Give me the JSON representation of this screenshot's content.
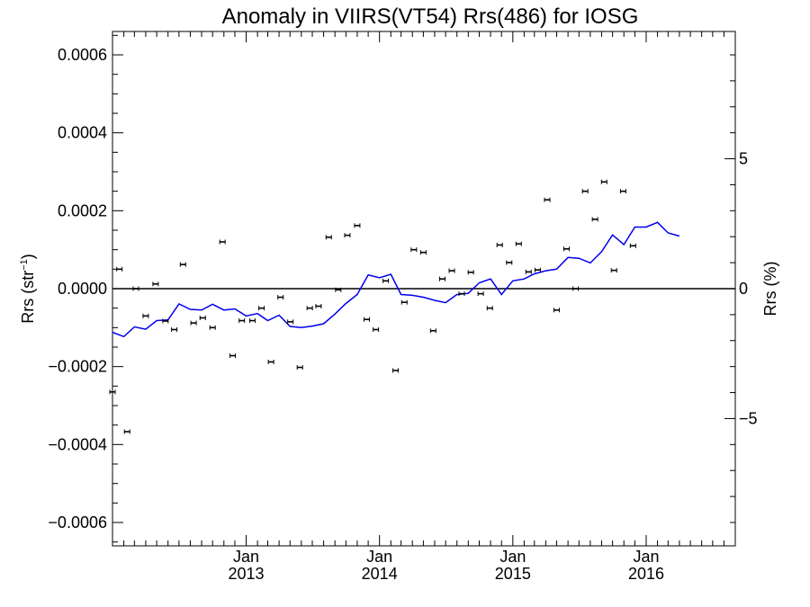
{
  "chart_data": {
    "type": "scatter",
    "title": "Anomaly in VIIRS(VT54) Rrs(486) for IOSG",
    "ylabel_main": "Rrs (str",
    "ylabel_sup": "−1",
    "ylabel_close": ")",
    "y2label": "Rrs (%)",
    "xlim": [
      "2012-01-01",
      "2016-09-01"
    ],
    "ylim": [
      -0.00066,
      0.00066
    ],
    "y2lim": [
      -9.9,
      9.9
    ],
    "x_ticks": [
      {
        "date": "2013-01-01",
        "month": "Jan",
        "year": "2013"
      },
      {
        "date": "2014-01-01",
        "month": "Jan",
        "year": "2014"
      },
      {
        "date": "2015-01-01",
        "month": "Jan",
        "year": "2015"
      },
      {
        "date": "2016-01-01",
        "month": "Jan",
        "year": "2016"
      }
    ],
    "y_ticks": [
      {
        "value": 0.0006,
        "label": "0.0006"
      },
      {
        "value": 0.0004,
        "label": "0.0004"
      },
      {
        "value": 0.0002,
        "label": "0.0002"
      },
      {
        "value": 0.0,
        "label": "0.0000"
      },
      {
        "value": -0.0002,
        "label": "−0.0002"
      },
      {
        "value": -0.0004,
        "label": "−0.0004"
      },
      {
        "value": -0.0006,
        "label": "−0.0006"
      }
    ],
    "y2_ticks": [
      {
        "value": 5,
        "label": "5"
      },
      {
        "value": 0,
        "label": "0"
      },
      {
        "value": -5,
        "label": "−5"
      }
    ],
    "series": [
      {
        "kind": "points",
        "color": "#000000",
        "points": [
          {
            "x": "2012-01-01",
            "y": -0.000265
          },
          {
            "x": "2012-01-20",
            "y": 5e-05
          },
          {
            "x": "2012-02-10",
            "y": -0.000367
          },
          {
            "x": "2012-03-05",
            "y": 0.0
          },
          {
            "x": "2012-04-01",
            "y": -7e-05
          },
          {
            "x": "2012-04-28",
            "y": 1.2e-05
          },
          {
            "x": "2012-05-25",
            "y": -8.3e-05
          },
          {
            "x": "2012-06-18",
            "y": -0.000105
          },
          {
            "x": "2012-07-12",
            "y": 6.2e-05
          },
          {
            "x": "2012-08-10",
            "y": -8.8e-05
          },
          {
            "x": "2012-09-04",
            "y": -7.5e-05
          },
          {
            "x": "2012-10-01",
            "y": -0.0001
          },
          {
            "x": "2012-10-28",
            "y": 0.00012
          },
          {
            "x": "2012-11-25",
            "y": -0.000172
          },
          {
            "x": "2012-12-20",
            "y": -8.2e-05
          },
          {
            "x": "2013-01-18",
            "y": -8.2e-05
          },
          {
            "x": "2013-02-12",
            "y": -5e-05
          },
          {
            "x": "2013-03-10",
            "y": -0.000188
          },
          {
            "x": "2013-04-05",
            "y": -2.2e-05
          },
          {
            "x": "2013-05-02",
            "y": -8.5e-05
          },
          {
            "x": "2013-05-28",
            "y": -0.000202
          },
          {
            "x": "2013-06-24",
            "y": -5e-05
          },
          {
            "x": "2013-07-18",
            "y": -4.5e-05
          },
          {
            "x": "2013-08-15",
            "y": 0.000132
          },
          {
            "x": "2013-09-10",
            "y": -3e-06
          },
          {
            "x": "2013-10-05",
            "y": 0.000137
          },
          {
            "x": "2013-11-01",
            "y": 0.000162
          },
          {
            "x": "2013-11-27",
            "y": -7.9e-05
          },
          {
            "x": "2013-12-22",
            "y": -0.000105
          },
          {
            "x": "2014-01-18",
            "y": 2e-05
          },
          {
            "x": "2014-02-14",
            "y": -0.00021
          },
          {
            "x": "2014-03-10",
            "y": -3.5e-05
          },
          {
            "x": "2014-04-05",
            "y": 0.0001
          },
          {
            "x": "2014-05-01",
            "y": 9.3e-05
          },
          {
            "x": "2014-05-28",
            "y": -0.000108
          },
          {
            "x": "2014-06-22",
            "y": 2.5e-05
          },
          {
            "x": "2014-07-18",
            "y": 4.6e-05
          },
          {
            "x": "2014-08-14",
            "y": -1.3e-05
          },
          {
            "x": "2014-09-08",
            "y": 4.2e-05
          },
          {
            "x": "2014-10-05",
            "y": -1.3e-05
          },
          {
            "x": "2014-10-30",
            "y": -5e-05
          },
          {
            "x": "2014-11-26",
            "y": 0.000112
          },
          {
            "x": "2014-12-22",
            "y": 6.7e-05
          },
          {
            "x": "2015-01-17",
            "y": 0.000115
          },
          {
            "x": "2015-02-13",
            "y": 4.3e-05
          },
          {
            "x": "2015-03-10",
            "y": 4.8e-05
          },
          {
            "x": "2015-04-05",
            "y": 0.000228
          },
          {
            "x": "2015-05-01",
            "y": -5.5e-05
          },
          {
            "x": "2015-05-28",
            "y": 0.000102
          },
          {
            "x": "2015-06-22",
            "y": 0.0
          },
          {
            "x": "2015-07-18",
            "y": 0.00025
          },
          {
            "x": "2015-08-14",
            "y": 0.000178
          },
          {
            "x": "2015-09-08",
            "y": 0.000274
          },
          {
            "x": "2015-10-05",
            "y": 4.7e-05
          },
          {
            "x": "2015-10-30",
            "y": 0.00025
          },
          {
            "x": "2015-11-26",
            "y": 0.00011
          }
        ]
      },
      {
        "kind": "line",
        "color": "#0000ee",
        "points": [
          {
            "x": "2012-01-01",
            "y": -0.000112
          },
          {
            "x": "2012-02-01",
            "y": -0.000123
          },
          {
            "x": "2012-03-01",
            "y": -9.8e-05
          },
          {
            "x": "2012-04-01",
            "y": -0.000104
          },
          {
            "x": "2012-05-01",
            "y": -8.2e-05
          },
          {
            "x": "2012-06-01",
            "y": -8e-05
          },
          {
            "x": "2012-07-01",
            "y": -3.9e-05
          },
          {
            "x": "2012-08-01",
            "y": -5.3e-05
          },
          {
            "x": "2012-09-01",
            "y": -5.5e-05
          },
          {
            "x": "2012-10-01",
            "y": -4e-05
          },
          {
            "x": "2012-11-01",
            "y": -5.5e-05
          },
          {
            "x": "2012-12-01",
            "y": -5.2e-05
          },
          {
            "x": "2013-01-01",
            "y": -7e-05
          },
          {
            "x": "2013-02-01",
            "y": -6.4e-05
          },
          {
            "x": "2013-03-01",
            "y": -8.2e-05
          },
          {
            "x": "2013-04-01",
            "y": -6.8e-05
          },
          {
            "x": "2013-05-01",
            "y": -9.7e-05
          },
          {
            "x": "2013-06-01",
            "y": -0.0001
          },
          {
            "x": "2013-07-01",
            "y": -9.6e-05
          },
          {
            "x": "2013-08-01",
            "y": -9e-05
          },
          {
            "x": "2013-09-01",
            "y": -6.5e-05
          },
          {
            "x": "2013-10-01",
            "y": -3.8e-05
          },
          {
            "x": "2013-11-01",
            "y": -1.5e-05
          },
          {
            "x": "2013-12-01",
            "y": 3.5e-05
          },
          {
            "x": "2014-01-01",
            "y": 2.8e-05
          },
          {
            "x": "2014-02-01",
            "y": 3.7e-05
          },
          {
            "x": "2014-03-01",
            "y": -1.5e-05
          },
          {
            "x": "2014-04-01",
            "y": -1.7e-05
          },
          {
            "x": "2014-05-01",
            "y": -2.2e-05
          },
          {
            "x": "2014-06-01",
            "y": -3e-05
          },
          {
            "x": "2014-07-01",
            "y": -3.6e-05
          },
          {
            "x": "2014-08-01",
            "y": -1.5e-05
          },
          {
            "x": "2014-09-01",
            "y": -1.2e-05
          },
          {
            "x": "2014-10-01",
            "y": 1.5e-05
          },
          {
            "x": "2014-11-01",
            "y": 2.5e-05
          },
          {
            "x": "2014-12-01",
            "y": -1.5e-05
          },
          {
            "x": "2015-01-01",
            "y": 2e-05
          },
          {
            "x": "2015-02-01",
            "y": 2.5e-05
          },
          {
            "x": "2015-03-01",
            "y": 3.8e-05
          },
          {
            "x": "2015-04-01",
            "y": 4.6e-05
          },
          {
            "x": "2015-05-01",
            "y": 5e-05
          },
          {
            "x": "2015-06-01",
            "y": 8e-05
          },
          {
            "x": "2015-07-01",
            "y": 7.8e-05
          },
          {
            "x": "2015-08-01",
            "y": 6.6e-05
          },
          {
            "x": "2015-09-01",
            "y": 9.5e-05
          },
          {
            "x": "2015-10-01",
            "y": 0.000138
          },
          {
            "x": "2015-11-01",
            "y": 0.000113
          },
          {
            "x": "2015-12-01",
            "y": 0.000158
          },
          {
            "x": "2016-01-01",
            "y": 0.000158
          },
          {
            "x": "2016-02-01",
            "y": 0.00017
          },
          {
            "x": "2016-03-01",
            "y": 0.000143
          },
          {
            "x": "2016-04-01",
            "y": 0.000135
          }
        ]
      }
    ]
  }
}
